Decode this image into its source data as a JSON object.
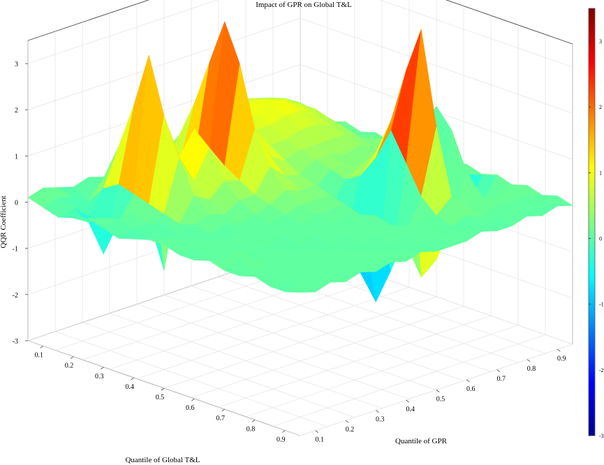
{
  "chart_data": {
    "type": "surface",
    "title": "Impact of GPR on Global T&L",
    "xlabel": "Quantile of Global T&L",
    "ylabel": "Quantile of GPR",
    "zlabel": "QQR Coefficient",
    "x_ticks": [
      "0.1",
      "0.2",
      "0.3",
      "0.4",
      "0.5",
      "0.6",
      "0.7",
      "0.8",
      "0.9"
    ],
    "y_ticks": [
      "0.1",
      "0.2",
      "0.3",
      "0.4",
      "0.5",
      "0.6",
      "0.7",
      "0.8",
      "0.9"
    ],
    "z_ticks": [
      "-3",
      "-2",
      "-1",
      "0",
      "1",
      "2",
      "3"
    ],
    "zlim": [
      -3,
      3.5
    ],
    "colormap": "jet",
    "colorbar": {
      "range": [
        -3,
        3.5
      ],
      "ticks": [
        "3",
        "2",
        "1",
        "0",
        "-1",
        "-2",
        "-3"
      ]
    },
    "x": [
      0.05,
      0.1,
      0.15,
      0.2,
      0.25,
      0.3,
      0.35,
      0.4,
      0.45,
      0.5,
      0.55,
      0.6,
      0.65,
      0.7,
      0.75,
      0.8,
      0.85,
      0.9,
      0.95
    ],
    "y": [
      0.05,
      0.1,
      0.15,
      0.2,
      0.25,
      0.3,
      0.35,
      0.4,
      0.45,
      0.5,
      0.55,
      0.6,
      0.65,
      0.7,
      0.75,
      0.8,
      0.85,
      0.9,
      0.95
    ],
    "z": [
      [
        0.1,
        0.0,
        -0.1,
        0.0,
        0.1,
        0.0,
        -0.1,
        0.0,
        0.1,
        0.1,
        0.0,
        0.0,
        0.1,
        0.0,
        0.0,
        0.1,
        0.0,
        0.0,
        0.1
      ],
      [
        0.2,
        0.1,
        0.0,
        -0.2,
        0.0,
        0.1,
        0.0,
        -0.1,
        0.0,
        0.1,
        0.0,
        0.1,
        0.0,
        0.2,
        0.0,
        0.1,
        0.0,
        0.1,
        0.0
      ],
      [
        0.1,
        0.0,
        -0.3,
        -1.0,
        -0.2,
        0.1,
        0.0,
        0.1,
        0.0,
        0.0,
        0.1,
        0.0,
        0.1,
        0.0,
        0.1,
        0.0,
        0.1,
        0.0,
        0.1
      ],
      [
        0.0,
        -0.2,
        0.2,
        0.4,
        0.3,
        0.2,
        0.1,
        0.0,
        0.1,
        0.0,
        0.0,
        0.1,
        0.0,
        0.1,
        0.0,
        0.1,
        0.0,
        0.1,
        0.0
      ],
      [
        0.1,
        0.2,
        1.0,
        2.0,
        3.2,
        2.0,
        1.2,
        0.5,
        0.2,
        0.1,
        0.0,
        0.1,
        0.0,
        0.0,
        0.1,
        0.0,
        0.1,
        0.0,
        0.1
      ],
      [
        0.0,
        0.1,
        0.5,
        1.0,
        1.5,
        1.0,
        0.6,
        0.3,
        0.1,
        0.0,
        0.1,
        0.0,
        0.1,
        0.0,
        0.0,
        0.1,
        0.0,
        0.1,
        0.0
      ],
      [
        0.1,
        0.0,
        -0.8,
        -1.8,
        0.2,
        1.5,
        1.2,
        0.6,
        0.3,
        0.1,
        0.0,
        0.1,
        0.0,
        0.1,
        0.0,
        0.0,
        0.1,
        0.0,
        0.1
      ],
      [
        0.0,
        0.1,
        0.2,
        0.4,
        0.6,
        0.9,
        0.7,
        0.5,
        0.3,
        0.2,
        0.1,
        0.0,
        0.1,
        0.0,
        0.1,
        0.0,
        0.0,
        0.1,
        0.0
      ],
      [
        0.1,
        0.3,
        0.8,
        1.6,
        2.6,
        3.6,
        2.8,
        1.5,
        0.8,
        0.4,
        0.2,
        0.1,
        0.0,
        0.1,
        0.0,
        0.1,
        0.0,
        0.0,
        0.1
      ],
      [
        0.2,
        0.4,
        0.7,
        1.1,
        1.4,
        1.6,
        1.2,
        0.8,
        0.5,
        0.3,
        0.2,
        0.1,
        0.1,
        0.0,
        0.1,
        0.0,
        0.1,
        0.0,
        0.0
      ],
      [
        0.3,
        0.5,
        0.7,
        0.9,
        1.0,
        1.0,
        0.8,
        0.6,
        0.4,
        0.3,
        0.2,
        0.1,
        0.0,
        0.1,
        0.0,
        0.1,
        0.0,
        0.1,
        0.0
      ],
      [
        0.4,
        0.6,
        0.8,
        0.9,
        0.8,
        0.6,
        0.4,
        0.2,
        0.0,
        -0.3,
        -0.8,
        -1.5,
        -2.0,
        -1.2,
        -0.3,
        0.1,
        0.0,
        0.1,
        0.0
      ],
      [
        0.5,
        0.7,
        0.8,
        0.9,
        0.8,
        0.6,
        0.5,
        0.4,
        0.3,
        0.2,
        0.4,
        0.9,
        1.6,
        1.0,
        0.4,
        0.1,
        0.0,
        0.0,
        0.1
      ],
      [
        0.6,
        0.8,
        1.0,
        1.1,
        0.9,
        0.7,
        0.5,
        0.4,
        0.3,
        0.4,
        0.8,
        1.6,
        2.8,
        3.8,
        1.8,
        0.4,
        0.1,
        0.0,
        0.0
      ],
      [
        0.7,
        0.8,
        0.9,
        1.0,
        0.9,
        0.7,
        0.5,
        0.3,
        0.1,
        -0.2,
        -0.6,
        -1.2,
        -1.8,
        -1.3,
        -0.4,
        0.1,
        0.0,
        0.1,
        0.0
      ],
      [
        0.6,
        0.7,
        0.8,
        0.8,
        0.7,
        0.6,
        0.5,
        0.4,
        0.3,
        0.4,
        0.7,
        1.2,
        1.8,
        1.4,
        0.6,
        0.2,
        0.1,
        0.0,
        0.1
      ],
      [
        0.5,
        0.6,
        0.6,
        0.6,
        0.5,
        0.4,
        0.3,
        0.2,
        0.1,
        -0.1,
        -0.3,
        -0.6,
        -1.0,
        -0.6,
        -0.2,
        0.0,
        0.1,
        0.0,
        0.0
      ],
      [
        0.3,
        0.4,
        0.3,
        0.2,
        0.2,
        0.1,
        0.2,
        0.3,
        0.4,
        0.4,
        0.3,
        0.2,
        0.1,
        0.2,
        0.3,
        0.2,
        0.1,
        0.0,
        0.1
      ],
      [
        0.1,
        0.1,
        0.0,
        0.1,
        0.0,
        0.1,
        0.0,
        0.1,
        0.0,
        0.1,
        0.0,
        0.1,
        0.0,
        0.1,
        0.0,
        0.1,
        0.0,
        0.1,
        0.0
      ]
    ]
  }
}
